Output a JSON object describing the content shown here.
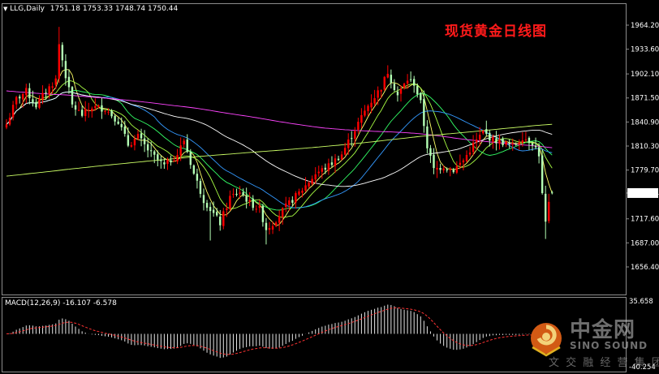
{
  "header": {
    "symbol": "LLG,Daily",
    "ohlc": "1751.18 1753.33 1748.74 1750.44"
  },
  "title_cn": "现货黄金日线图",
  "price_axis": {
    "ticks": [
      "1964.20",
      "1933.60",
      "1902.10",
      "1871.50",
      "1840.90",
      "1810.30",
      "1779.70",
      "1750.44",
      "1717.60",
      "1687.00",
      "1656.40"
    ],
    "current_price": "1750.44",
    "ylim": [
      1656.4,
      1964.2
    ]
  },
  "macd": {
    "label": "MACD(12,26,9) -16.107 -6.578",
    "ticks": [
      "35.658",
      "-40.254"
    ],
    "ylim": [
      -40.254,
      35.658
    ]
  },
  "watermark": {
    "name_cn": "中金网",
    "name_en": "SINO SOUND",
    "sub": "文 交 融 经 营 集 团"
  },
  "colors": {
    "bull": "#ff0000",
    "bear": "#b4ffb4",
    "ma1": "#ffff66",
    "ma2": "#aaff44",
    "ma3": "#33ff66",
    "ma4": "#3399ff",
    "ma5": "#ffffff",
    "ma6": "#ff44ff",
    "ma7": "#ccff66",
    "signal": "#ff3333"
  },
  "chart_data": {
    "type": "candlestick",
    "anchors": [
      [
        0,
        1838
      ],
      [
        3,
        1870
      ],
      [
        6,
        1880
      ],
      [
        9,
        1862
      ],
      [
        12,
        1880
      ],
      [
        15,
        1895
      ],
      [
        16,
        1940
      ],
      [
        18,
        1900
      ],
      [
        20,
        1862
      ],
      [
        23,
        1850
      ],
      [
        26,
        1860
      ],
      [
        30,
        1858
      ],
      [
        34,
        1842
      ],
      [
        37,
        1812
      ],
      [
        40,
        1822
      ],
      [
        44,
        1800
      ],
      [
        48,
        1785
      ],
      [
        52,
        1800
      ],
      [
        54,
        1818
      ],
      [
        57,
        1775
      ],
      [
        60,
        1742
      ],
      [
        62,
        1730
      ],
      [
        65,
        1712
      ],
      [
        68,
        1745
      ],
      [
        71,
        1752
      ],
      [
        74,
        1738
      ],
      [
        77,
        1730
      ],
      [
        79,
        1705
      ],
      [
        81,
        1712
      ],
      [
        84,
        1728
      ],
      [
        87,
        1742
      ],
      [
        90,
        1755
      ],
      [
        94,
        1775
      ],
      [
        98,
        1785
      ],
      [
        102,
        1800
      ],
      [
        106,
        1832
      ],
      [
        110,
        1862
      ],
      [
        114,
        1885
      ],
      [
        116,
        1905
      ],
      [
        119,
        1875
      ],
      [
        122,
        1895
      ],
      [
        124,
        1890
      ],
      [
        126,
        1865
      ],
      [
        128,
        1810
      ],
      [
        130,
        1780
      ],
      [
        133,
        1785
      ],
      [
        136,
        1780
      ],
      [
        139,
        1792
      ],
      [
        142,
        1812
      ],
      [
        145,
        1828
      ],
      [
        148,
        1818
      ],
      [
        151,
        1815
      ],
      [
        154,
        1810
      ],
      [
        157,
        1822
      ],
      [
        160,
        1815
      ],
      [
        162,
        1800
      ],
      [
        163,
        1748
      ],
      [
        164,
        1712
      ],
      [
        165,
        1735
      ],
      [
        166,
        1750
      ]
    ]
  }
}
